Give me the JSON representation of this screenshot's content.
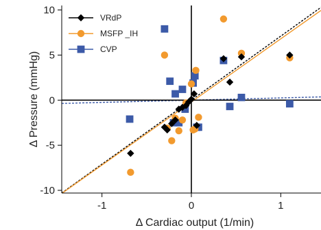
{
  "chart_data": {
    "type": "scatter",
    "xlabel": "Δ Cardiac output (1/min)",
    "ylabel": "Δ Pressure (mmHg)",
    "xlim": [
      -1.45,
      1.45
    ],
    "ylim": [
      -10.3,
      10.5
    ],
    "xticks": [
      -1,
      0,
      1
    ],
    "yticks": [
      -10,
      -5,
      0,
      5,
      10
    ],
    "xtick_labels": [
      "-1",
      "0",
      "1"
    ],
    "ytick_labels": [
      "-10",
      "-5",
      "0",
      "5",
      "10"
    ],
    "legend_position": "top-left",
    "grid": false,
    "series": [
      {
        "name": "VRdP",
        "color": "#000000",
        "marker": "diamond",
        "points": [
          [
            -0.68,
            -5.9
          ],
          [
            -0.3,
            -3.0
          ],
          [
            -0.27,
            -3.3
          ],
          [
            -0.22,
            -2.6
          ],
          [
            -0.18,
            -2.2
          ],
          [
            -0.14,
            -1.0
          ],
          [
            -0.1,
            -0.8
          ],
          [
            -0.06,
            -0.6
          ],
          [
            -0.03,
            -0.2
          ],
          [
            0.0,
            0.1
          ],
          [
            0.03,
            0.7
          ],
          [
            0.06,
            -2.8
          ],
          [
            0.36,
            4.6
          ],
          [
            0.43,
            2.0
          ],
          [
            0.56,
            4.8
          ],
          [
            1.1,
            5.0
          ]
        ],
        "fit": {
          "slope": 7.1,
          "intercept": 0.0,
          "style": "dashed"
        }
      },
      {
        "name": "MSFP _IH",
        "color": "#f29a2e",
        "marker": "circle",
        "points": [
          [
            -0.68,
            -8.0
          ],
          [
            -0.3,
            5.0
          ],
          [
            -0.27,
            -3.1
          ],
          [
            -0.22,
            -4.5
          ],
          [
            -0.18,
            -2.0
          ],
          [
            -0.14,
            -3.4
          ],
          [
            -0.1,
            -2.2
          ],
          [
            -0.06,
            -0.3
          ],
          [
            0.0,
            1.8
          ],
          [
            0.02,
            -3.3
          ],
          [
            0.04,
            -3.2
          ],
          [
            0.05,
            3.3
          ],
          [
            0.08,
            -1.9
          ],
          [
            0.36,
            9.0
          ],
          [
            0.56,
            5.2
          ],
          [
            1.1,
            4.7
          ]
        ],
        "fit": {
          "slope": 7.0,
          "intercept": -0.2,
          "style": "solid"
        }
      },
      {
        "name": "CVP",
        "color": "#3c5aa8",
        "marker": "square",
        "points": [
          [
            -0.69,
            -2.1
          ],
          [
            -0.3,
            7.9
          ],
          [
            -0.24,
            2.1
          ],
          [
            -0.2,
            -2.5
          ],
          [
            -0.18,
            0.7
          ],
          [
            -0.14,
            -2.5
          ],
          [
            -0.1,
            1.2
          ],
          [
            -0.07,
            -1.0
          ],
          [
            0.02,
            1.9
          ],
          [
            0.04,
            2.7
          ],
          [
            0.06,
            -3.0
          ],
          [
            0.08,
            -3.0
          ],
          [
            0.36,
            4.4
          ],
          [
            0.43,
            -0.7
          ],
          [
            0.56,
            0.3
          ],
          [
            1.1,
            -0.4
          ]
        ],
        "fit": {
          "slope": 0.25,
          "intercept": 0.0,
          "style": "dashed"
        }
      }
    ]
  }
}
